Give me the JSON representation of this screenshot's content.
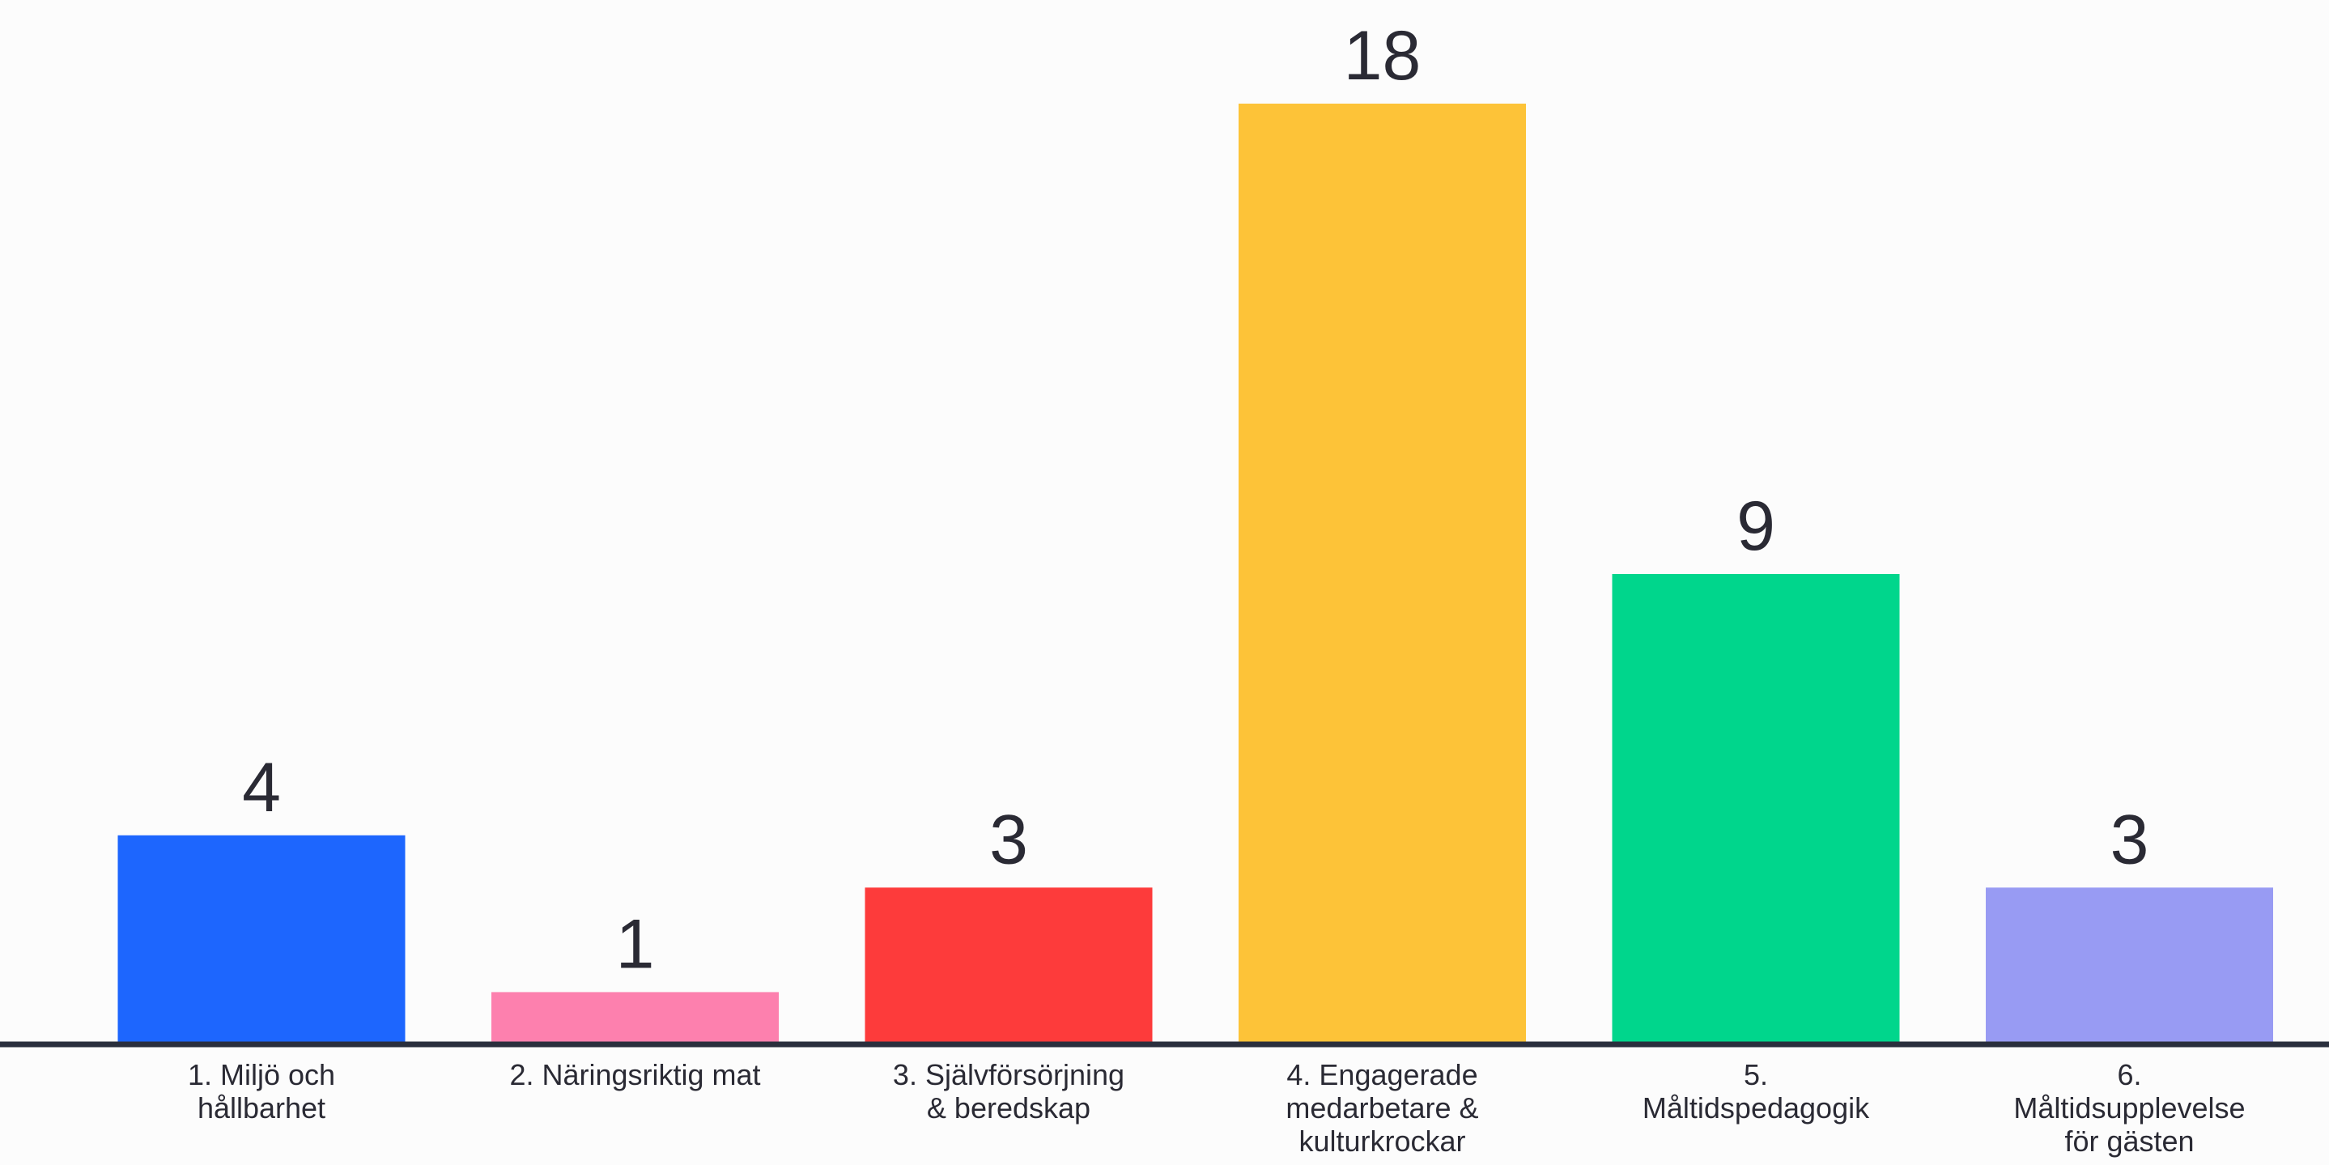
{
  "chart_data": {
    "type": "bar",
    "title": "",
    "xlabel": "",
    "ylabel": "",
    "ylim": [
      0,
      18
    ],
    "grid": false,
    "legend": "none",
    "baseline_color": "#2a2f3d",
    "categories": [
      [
        "1. Miljö och",
        "hållbarhet"
      ],
      [
        "2. Näringsriktig mat"
      ],
      [
        "3. Självförsörjning",
        "& beredskap"
      ],
      [
        "4. Engagerade",
        "medarbetare &",
        "kulturkrockar"
      ],
      [
        "5.",
        "Måltidspedagogik"
      ],
      [
        "6.",
        "Måltidsupplevelse",
        "för gästen"
      ]
    ],
    "values": [
      4,
      1,
      3,
      18,
      9,
      3
    ],
    "colors": [
      "#1d66fe",
      "#fd80ae",
      "#fd3b3b",
      "#fdc338",
      "#00d68c",
      "#989bf3"
    ]
  }
}
